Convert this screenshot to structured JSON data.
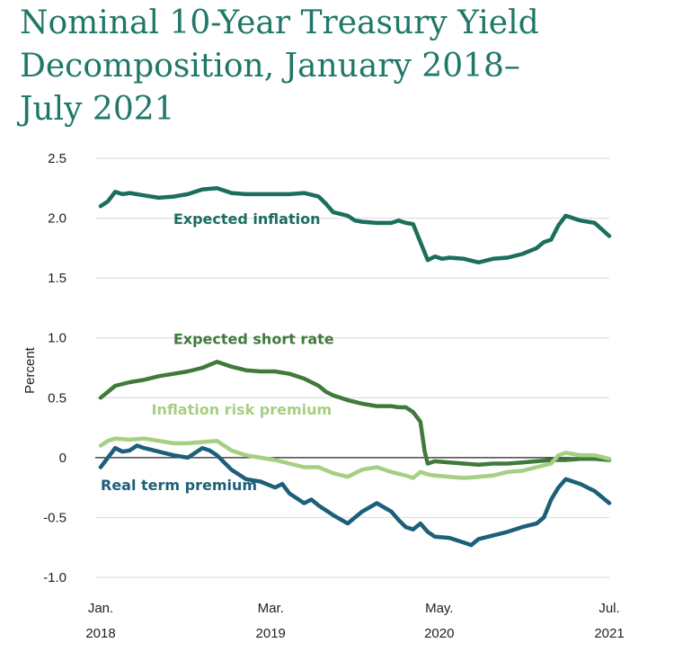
{
  "chart_data": {
    "type": "line",
    "title_lines": [
      "Nominal 10-Year Treasury Yield",
      "Decomposition, January 2018–",
      "July 2021"
    ],
    "ylabel": "Percent",
    "ylim": [
      -1.0,
      2.5
    ],
    "yticks": [
      2.5,
      2.0,
      1.5,
      1.0,
      0.5,
      0,
      -0.5,
      -1.0
    ],
    "ytick_labels": [
      "2.5",
      "2.0",
      "1.5",
      "1.0",
      "0.5",
      "0",
      "-0.5",
      "-1.0"
    ],
    "xlim": [
      2018.0,
      2021.5
    ],
    "xticks": [
      {
        "x": 2018.0,
        "line1": "Jan.",
        "line2": "2018"
      },
      {
        "x": 2019.17,
        "line1": "Mar.",
        "line2": "2019"
      },
      {
        "x": 2020.33,
        "line1": "May.",
        "line2": "2020"
      },
      {
        "x": 2021.5,
        "line1": "Jul.",
        "line2": "2021"
      }
    ],
    "grid": true,
    "zero_line": true,
    "series": [
      {
        "name": "Expected inflation",
        "color": "#1c6e5c",
        "x": [
          2018.0,
          2018.05,
          2018.1,
          2018.15,
          2018.2,
          2018.3,
          2018.4,
          2018.5,
          2018.6,
          2018.7,
          2018.8,
          2018.9,
          2019.0,
          2019.1,
          2019.2,
          2019.3,
          2019.4,
          2019.5,
          2019.55,
          2019.6,
          2019.7,
          2019.75,
          2019.8,
          2019.9,
          2020.0,
          2020.05,
          2020.1,
          2020.15,
          2020.2,
          2020.25,
          2020.3,
          2020.35,
          2020.4,
          2020.5,
          2020.6,
          2020.7,
          2020.8,
          2020.9,
          2021.0,
          2021.05,
          2021.1,
          2021.15,
          2021.2,
          2021.3,
          2021.4,
          2021.5
        ],
        "y": [
          2.1,
          2.14,
          2.22,
          2.2,
          2.21,
          2.19,
          2.17,
          2.18,
          2.2,
          2.24,
          2.25,
          2.21,
          2.2,
          2.2,
          2.2,
          2.2,
          2.21,
          2.18,
          2.12,
          2.05,
          2.02,
          1.98,
          1.97,
          1.96,
          1.96,
          1.98,
          1.96,
          1.95,
          1.8,
          1.65,
          1.68,
          1.66,
          1.67,
          1.66,
          1.63,
          1.66,
          1.67,
          1.7,
          1.75,
          1.8,
          1.82,
          1.94,
          2.02,
          1.98,
          1.96,
          1.85
        ]
      },
      {
        "name": "Expected short rate",
        "color": "#3f7a3b",
        "x": [
          2018.0,
          2018.05,
          2018.1,
          2018.2,
          2018.3,
          2018.4,
          2018.5,
          2018.6,
          2018.7,
          2018.8,
          2018.9,
          2019.0,
          2019.1,
          2019.2,
          2019.3,
          2019.4,
          2019.5,
          2019.55,
          2019.6,
          2019.7,
          2019.8,
          2019.9,
          2020.0,
          2020.05,
          2020.1,
          2020.15,
          2020.2,
          2020.23,
          2020.25,
          2020.3,
          2020.4,
          2020.5,
          2020.6,
          2020.7,
          2020.8,
          2020.9,
          2021.0,
          2021.1,
          2021.2,
          2021.3,
          2021.4,
          2021.5
        ],
        "y": [
          0.5,
          0.55,
          0.6,
          0.63,
          0.65,
          0.68,
          0.7,
          0.72,
          0.75,
          0.8,
          0.76,
          0.73,
          0.72,
          0.72,
          0.7,
          0.66,
          0.6,
          0.55,
          0.52,
          0.48,
          0.45,
          0.43,
          0.43,
          0.42,
          0.42,
          0.38,
          0.3,
          0.05,
          -0.05,
          -0.03,
          -0.04,
          -0.05,
          -0.06,
          -0.05,
          -0.05,
          -0.04,
          -0.03,
          -0.02,
          -0.02,
          -0.01,
          -0.01,
          -0.02
        ]
      },
      {
        "name": "Inflation risk premium",
        "color": "#a6cf84",
        "x": [
          2018.0,
          2018.05,
          2018.1,
          2018.2,
          2018.3,
          2018.4,
          2018.5,
          2018.6,
          2018.7,
          2018.8,
          2018.9,
          2019.0,
          2019.1,
          2019.2,
          2019.3,
          2019.4,
          2019.5,
          2019.6,
          2019.7,
          2019.8,
          2019.9,
          2020.0,
          2020.1,
          2020.15,
          2020.2,
          2020.25,
          2020.3,
          2020.4,
          2020.5,
          2020.6,
          2020.7,
          2020.8,
          2020.9,
          2021.0,
          2021.1,
          2021.15,
          2021.2,
          2021.3,
          2021.4,
          2021.5
        ],
        "y": [
          0.1,
          0.14,
          0.16,
          0.15,
          0.16,
          0.14,
          0.12,
          0.12,
          0.13,
          0.14,
          0.06,
          0.02,
          0.0,
          -0.02,
          -0.05,
          -0.08,
          -0.08,
          -0.13,
          -0.16,
          -0.1,
          -0.08,
          -0.12,
          -0.15,
          -0.17,
          -0.12,
          -0.14,
          -0.15,
          -0.16,
          -0.17,
          -0.16,
          -0.15,
          -0.12,
          -0.11,
          -0.08,
          -0.05,
          0.02,
          0.04,
          0.02,
          0.02,
          -0.01
        ]
      },
      {
        "name": "Real term premium",
        "color": "#1d5f7a",
        "x": [
          2018.0,
          2018.05,
          2018.1,
          2018.15,
          2018.2,
          2018.25,
          2018.3,
          2018.4,
          2018.5,
          2018.6,
          2018.7,
          2018.75,
          2018.8,
          2018.9,
          2019.0,
          2019.1,
          2019.2,
          2019.25,
          2019.3,
          2019.4,
          2019.45,
          2019.5,
          2019.6,
          2019.7,
          2019.75,
          2019.8,
          2019.9,
          2020.0,
          2020.05,
          2020.1,
          2020.15,
          2020.2,
          2020.25,
          2020.3,
          2020.4,
          2020.5,
          2020.55,
          2020.6,
          2020.7,
          2020.8,
          2020.9,
          2021.0,
          2021.05,
          2021.1,
          2021.15,
          2021.2,
          2021.3,
          2021.4,
          2021.5
        ],
        "y": [
          -0.08,
          0.0,
          0.08,
          0.05,
          0.06,
          0.1,
          0.08,
          0.05,
          0.02,
          0.0,
          0.08,
          0.06,
          0.02,
          -0.1,
          -0.18,
          -0.2,
          -0.25,
          -0.22,
          -0.3,
          -0.38,
          -0.35,
          -0.4,
          -0.48,
          -0.55,
          -0.5,
          -0.45,
          -0.38,
          -0.45,
          -0.52,
          -0.58,
          -0.6,
          -0.55,
          -0.62,
          -0.66,
          -0.67,
          -0.71,
          -0.73,
          -0.68,
          -0.65,
          -0.62,
          -0.58,
          -0.55,
          -0.5,
          -0.35,
          -0.25,
          -0.18,
          -0.22,
          -0.28,
          -0.38
        ]
      }
    ],
    "series_labels": [
      {
        "text": "Expected inflation",
        "x": 2018.5,
        "y": 1.95
      },
      {
        "text": "Expected short rate",
        "x": 2018.5,
        "y": 0.95
      },
      {
        "text": "Inflation risk premium",
        "x": 2018.35,
        "y": 0.36
      },
      {
        "text": "Real term premium",
        "x": 2018.0,
        "y": -0.27
      }
    ]
  }
}
